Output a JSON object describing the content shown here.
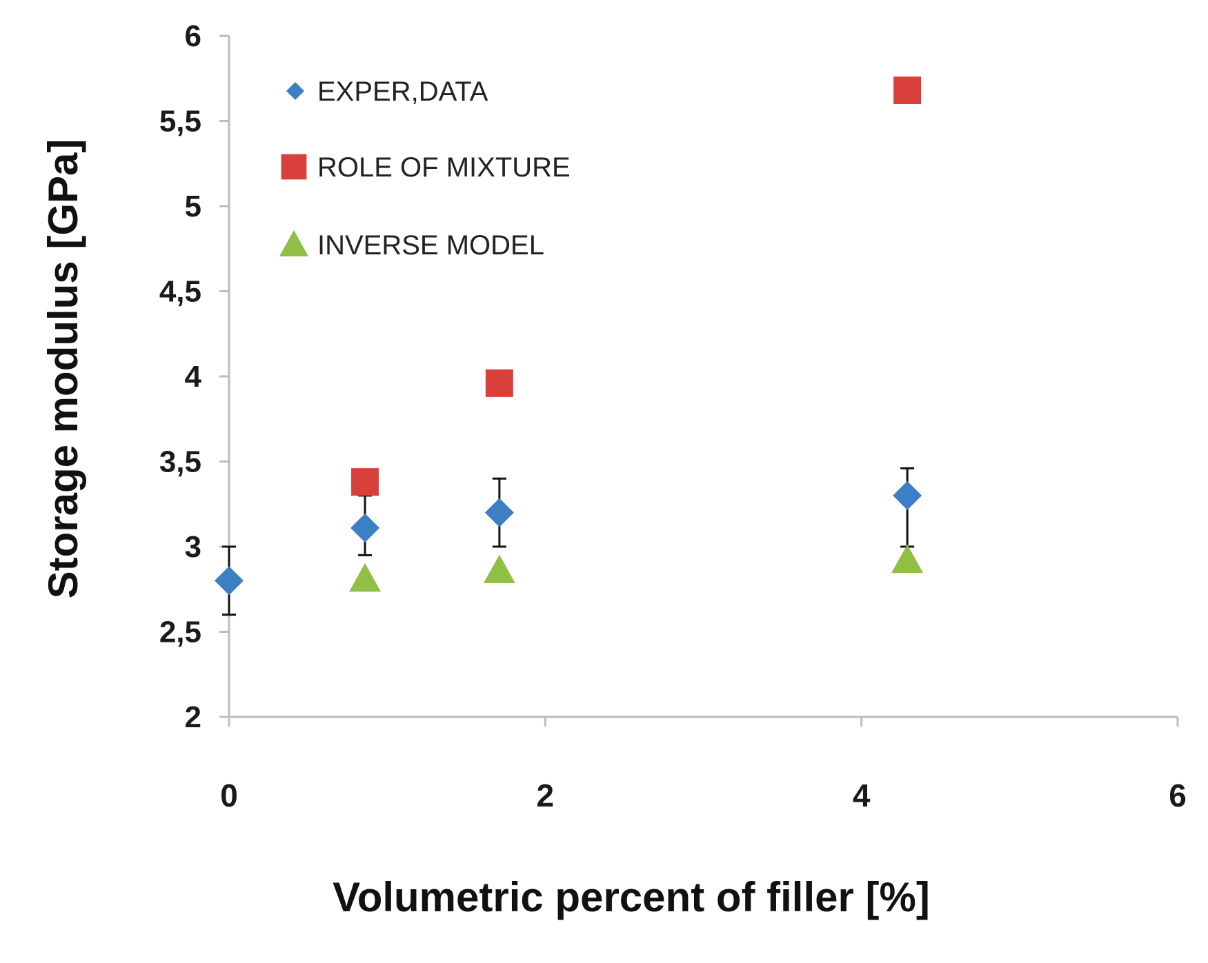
{
  "chart_data": {
    "type": "scatter",
    "title": "",
    "xlabel": "Volumetric percent of filler [%]",
    "ylabel": "Storage modulus [GPa]",
    "xlim": [
      0,
      6
    ],
    "ylim": [
      2,
      6
    ],
    "x_ticks": [
      0,
      2,
      4,
      6
    ],
    "x_tick_labels": [
      "0",
      "2",
      "4",
      "6"
    ],
    "y_ticks": [
      2,
      2.5,
      3,
      3.5,
      4,
      4.5,
      5,
      5.5,
      6
    ],
    "y_tick_labels": [
      "2",
      "2,5",
      "3",
      "3,5",
      "4",
      "4,5",
      "5",
      "5,5",
      "6"
    ],
    "grid": false,
    "legend_position": "top-left",
    "series": [
      {
        "name": "EXPER,DATA",
        "marker": "diamond",
        "color": "#3d7fc4",
        "x": [
          0,
          0.86,
          1.71,
          4.29
        ],
        "y": [
          2.8,
          3.11,
          3.2,
          3.3
        ],
        "error_low": [
          2.6,
          2.95,
          3.0,
          3.0
        ],
        "error_high": [
          3.0,
          3.3,
          3.4,
          3.46
        ]
      },
      {
        "name": "ROLE OF MIXTURE",
        "marker": "square",
        "color": "#d9403b",
        "x": [
          0.86,
          1.71,
          4.29
        ],
        "y": [
          3.38,
          3.96,
          5.68
        ]
      },
      {
        "name": "INVERSE  MODEL",
        "marker": "triangle",
        "color": "#8fbf45",
        "x": [
          0.86,
          1.71,
          4.29
        ],
        "y": [
          2.81,
          2.86,
          2.92
        ]
      }
    ]
  }
}
